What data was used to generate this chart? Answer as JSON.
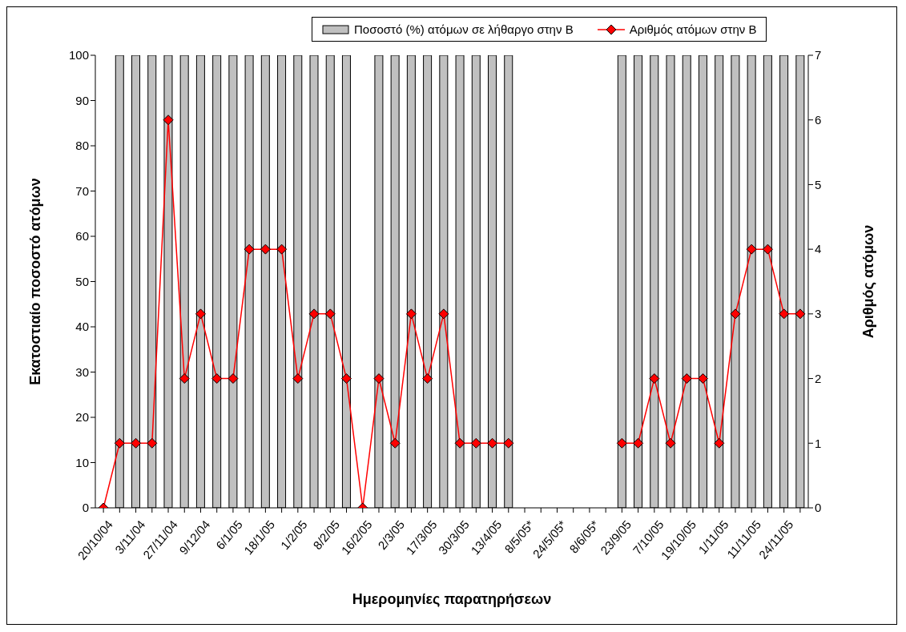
{
  "chart_data": {
    "type": "bar",
    "xlabel": "Ημερομηνίες παρατηρήσεων",
    "ylabel": "Εκατοστιαίο ποσοστό ατόμων",
    "y2label": "Αριθμός ατόμων",
    "categories": [
      "20/10/04",
      null,
      "3/11/04",
      null,
      "27/11/04",
      null,
      "9/12/04",
      null,
      "6/1/05",
      null,
      "18/1/05",
      null,
      "1/2/05",
      null,
      "8/2/05",
      null,
      "16/2/05",
      null,
      "2/3/05",
      null,
      "17/3/05",
      null,
      "30/3/05",
      null,
      "13/4/05",
      null,
      "8/5/05*",
      null,
      "24/5/05*",
      null,
      "8/6/05*",
      null,
      "23/9/05",
      null,
      "7/10/05",
      null,
      "19/10/05",
      null,
      "1/11/05",
      null,
      "11/11/05",
      null,
      "24/11/05",
      null
    ],
    "series": [
      {
        "name": "Ποσοστό (%) ατόμων σε λήθαργο στην Β",
        "color": "#c0c0c0",
        "values": [
          null,
          100,
          100,
          100,
          100,
          100,
          100,
          100,
          100,
          100,
          100,
          100,
          100,
          100,
          100,
          100,
          null,
          100,
          100,
          100,
          100,
          100,
          100,
          100,
          100,
          100,
          null,
          null,
          null,
          null,
          null,
          null,
          100,
          100,
          100,
          100,
          100,
          100,
          100,
          100,
          100,
          100,
          100,
          100
        ]
      },
      {
        "name": "Αριθμός ατόμων στην Β",
        "type": "line",
        "axis": "y2",
        "color": "#ff0000",
        "marker": "diamond",
        "line_style": "solid",
        "values": [
          0,
          1,
          1,
          1,
          6,
          2,
          3,
          2,
          2,
          4,
          4,
          4,
          2,
          3,
          3,
          2,
          0,
          2,
          1,
          3,
          2,
          3,
          1,
          1,
          1,
          1,
          null,
          null,
          null,
          null,
          null,
          null,
          1,
          1,
          2,
          1,
          2,
          2,
          1,
          3,
          4,
          4,
          3,
          3
        ]
      }
    ],
    "ylim": [
      0,
      100
    ],
    "yticks": [
      0,
      10,
      20,
      30,
      40,
      50,
      60,
      70,
      80,
      90,
      100
    ],
    "y2lim": [
      0,
      7
    ],
    "y2ticks": [
      0,
      1,
      2,
      3,
      4,
      5,
      6,
      7
    ],
    "grid": false,
    "legend": "top"
  }
}
